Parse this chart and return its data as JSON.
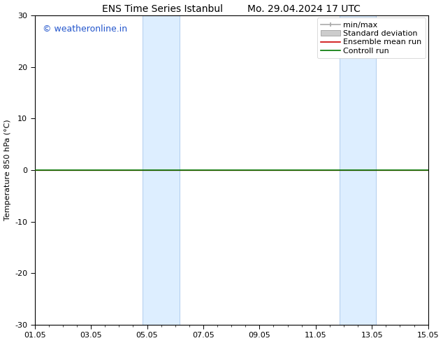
{
  "title": "ENS Time Series Istanbul        Mo. 29.04.2024 17 UTC",
  "ylabel": "Temperature 850 hPa (°C)",
  "watermark": "© weatheronline.in",
  "watermark_color": "#2255cc",
  "xlim": [
    0,
    14
  ],
  "ylim": [
    -30,
    30
  ],
  "yticks": [
    -30,
    -20,
    -10,
    0,
    10,
    20,
    30
  ],
  "xtick_labels": [
    "01.05",
    "03.05",
    "05.05",
    "07.05",
    "09.05",
    "11.05",
    "13.05",
    "15.05"
  ],
  "xtick_positions": [
    0,
    2,
    4,
    6,
    8,
    10,
    12,
    14
  ],
  "shaded_bands": [
    {
      "x_start": 3.85,
      "x_end": 5.15
    },
    {
      "x_start": 10.85,
      "x_end": 12.15
    }
  ],
  "shaded_color": "#ddeeff",
  "shaded_edge_color": "#b0ccee",
  "control_run_color": "#007700",
  "ensemble_mean_color": "#cc0000",
  "minmax_color": "#aaaaaa",
  "stddev_color": "#cccccc",
  "bg_color": "#ffffff",
  "legend_labels": [
    "min/max",
    "Standard deviation",
    "Ensemble mean run",
    "Controll run"
  ],
  "font_size": 8,
  "title_font_size": 10,
  "watermark_font_size": 9
}
